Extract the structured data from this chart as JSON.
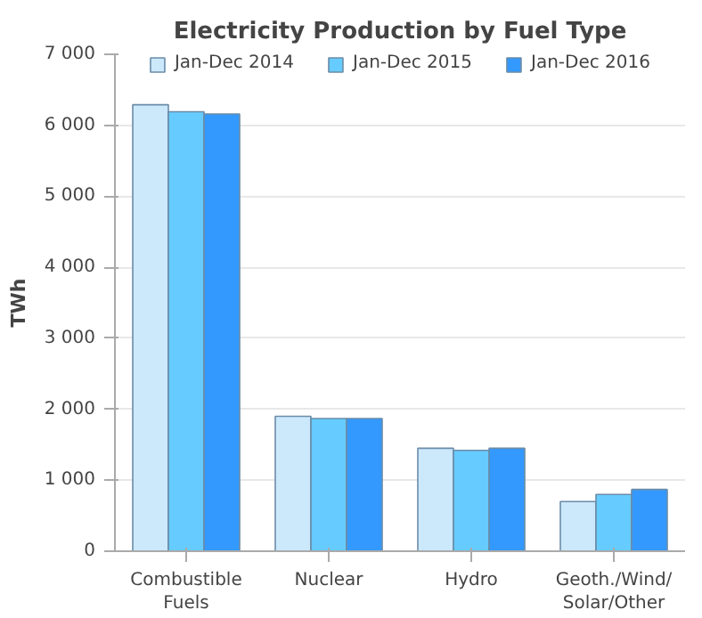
{
  "chart_data": {
    "type": "bar",
    "title": "Electricity Production by Fuel Type",
    "ylabel": "TWh",
    "categories": [
      "Combustible\nFuels",
      "Nuclear",
      "Hydro",
      "Geoth./Wind/\nSolar/Other"
    ],
    "series": [
      {
        "name": "Jan-Dec 2014",
        "color": "#cce8fb",
        "values": [
          6290,
          1900,
          1450,
          700
        ]
      },
      {
        "name": "Jan-Dec 2015",
        "color": "#66ccff",
        "values": [
          6190,
          1870,
          1420,
          800
        ]
      },
      {
        "name": "Jan-Dec 2016",
        "color": "#3399ff",
        "values": [
          6160,
          1870,
          1450,
          870
        ]
      }
    ],
    "ylim": [
      0,
      7000
    ],
    "yticks": [
      {
        "value": 0,
        "label": "0"
      },
      {
        "value": 1000,
        "label": "1 000"
      },
      {
        "value": 2000,
        "label": "2 000"
      },
      {
        "value": 3000,
        "label": "3 000"
      },
      {
        "value": 4000,
        "label": "4 000"
      },
      {
        "value": 5000,
        "label": "5 000"
      },
      {
        "value": 6000,
        "label": "6 000"
      },
      {
        "value": 7000,
        "label": "7 000"
      }
    ],
    "grid": "y",
    "legend": "top"
  }
}
